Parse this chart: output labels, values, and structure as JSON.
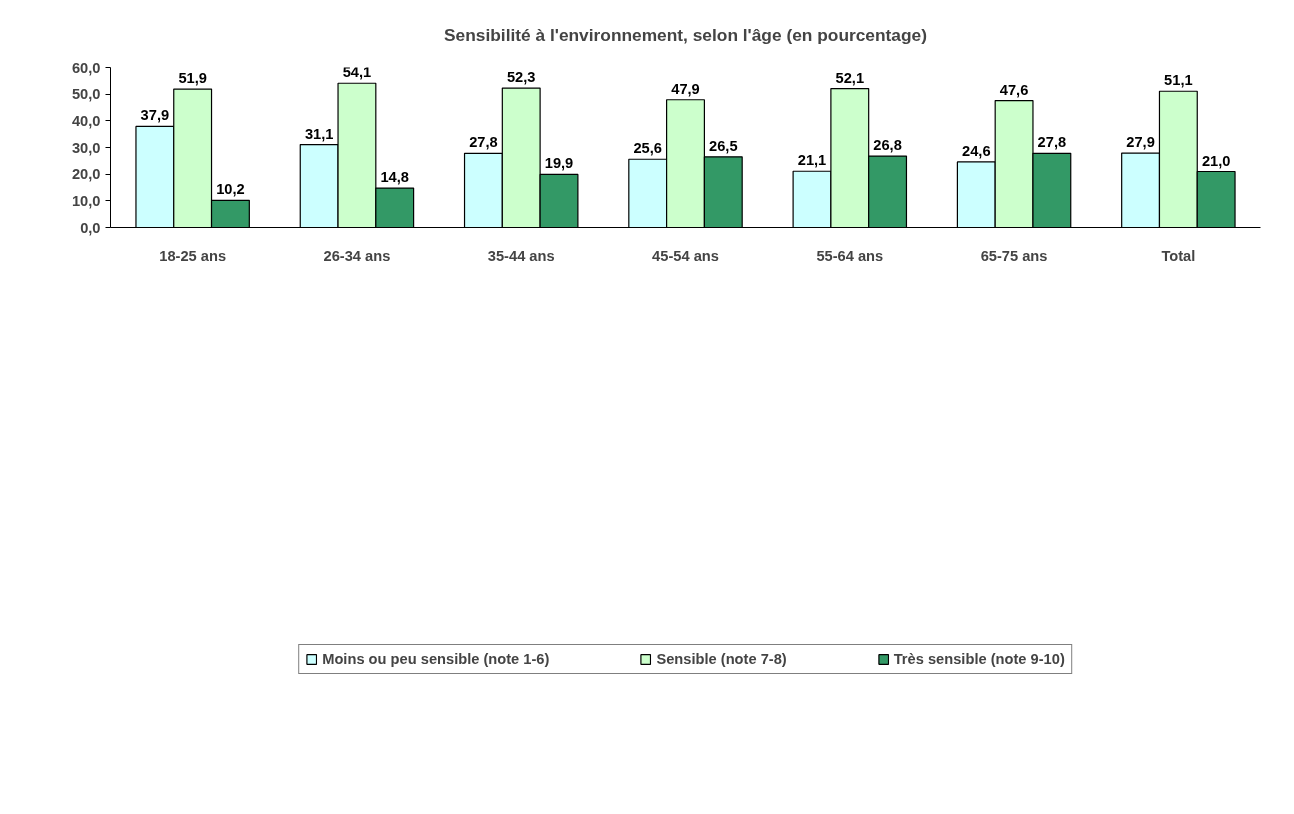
{
  "chart_data": {
    "type": "bar",
    "title": "Sensibilité à l'environnement, selon l'âge (en pourcentage)",
    "categories": [
      "18-25 ans",
      "26-34 ans",
      "35-44 ans",
      "45-54 ans",
      "55-64 ans",
      "65-75 ans",
      "Total"
    ],
    "series": [
      {
        "name": "Moins ou peu sensible (note 1-6)",
        "color": "#ccffff",
        "values": [
          37.9,
          31.1,
          27.8,
          25.6,
          21.1,
          24.6,
          27.9
        ],
        "value_labels": [
          "37,9",
          "31,1",
          "27,8",
          "25,6",
          "21,1",
          "24,6",
          "27,9"
        ]
      },
      {
        "name": "Sensible (note 7-8)",
        "color": "#ccffcc",
        "values": [
          51.9,
          54.1,
          52.3,
          47.9,
          52.1,
          47.6,
          51.1
        ],
        "value_labels": [
          "51,9",
          "54,1",
          "52,3",
          "47,9",
          "52,1",
          "47,6",
          "51,1"
        ]
      },
      {
        "name": "Très sensible (note 9-10)",
        "color": "#339966",
        "values": [
          10.2,
          14.8,
          19.9,
          26.5,
          26.8,
          27.8,
          21.0
        ],
        "value_labels": [
          "10,2",
          "14,8",
          "19,9",
          "26,5",
          "26,8",
          "27,8",
          "21,0"
        ]
      }
    ],
    "ylim": [
      0,
      60
    ],
    "yticks": [
      {
        "value": 0,
        "label": "0,0"
      },
      {
        "value": 10,
        "label": "10,0"
      },
      {
        "value": 20,
        "label": "20,0"
      },
      {
        "value": 30,
        "label": "30,0"
      },
      {
        "value": 40,
        "label": "40,0"
      },
      {
        "value": 50,
        "label": "50,0"
      },
      {
        "value": 60,
        "label": "60,0"
      }
    ],
    "grid": false,
    "legend": "bottom"
  }
}
